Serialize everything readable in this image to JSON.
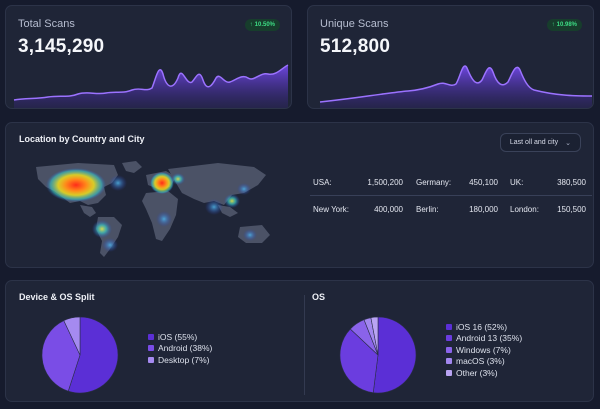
{
  "kpis": [
    {
      "label": "Total Scans",
      "value": "3,145,290",
      "badge": "10.50%",
      "badge_icon": "arrow-up-icon"
    },
    {
      "label": "Unique Scans",
      "value": "512,800",
      "badge": "10.98%",
      "badge_icon": "arrow-up-icon"
    }
  ],
  "location": {
    "title": "Location by Country and City",
    "dropdown_label": "Last oll and city",
    "rows": [
      [
        {
          "k": "USA:",
          "v": "1,500,200"
        },
        {
          "k": "Germany:",
          "v": "450,100"
        },
        {
          "k": "UK:",
          "v": "380,500"
        }
      ],
      [
        {
          "k": "New York:",
          "v": "400,000"
        },
        {
          "k": "Berlin:",
          "v": "180,000"
        },
        {
          "k": "London:",
          "v": "150,500"
        }
      ]
    ]
  },
  "device": {
    "title": "Device & OS Split",
    "items": [
      {
        "label": "iOS (55%)",
        "value": 55,
        "color": "#5b2fd6"
      },
      {
        "label": "Android (38%)",
        "value": 38,
        "color": "#7a4de6"
      },
      {
        "label": "Desktop (7%)",
        "value": 7,
        "color": "#a58af0"
      }
    ]
  },
  "os": {
    "title": "OS",
    "items": [
      {
        "label": "iOS 16 (52%)",
        "value": 52,
        "color": "#5b2fd6"
      },
      {
        "label": "Android 13 (35%)",
        "value": 35,
        "color": "#6b3ddf"
      },
      {
        "label": "Windows (7%)",
        "value": 7,
        "color": "#8a63ea"
      },
      {
        "label": "macOS (3%)",
        "value": 3,
        "color": "#a287ef"
      },
      {
        "label": "Other (3%)",
        "value": 3,
        "color": "#b9a4f3"
      }
    ]
  },
  "colors": {
    "accent": "#7c4dff",
    "badge_text": "#3ddc84"
  }
}
